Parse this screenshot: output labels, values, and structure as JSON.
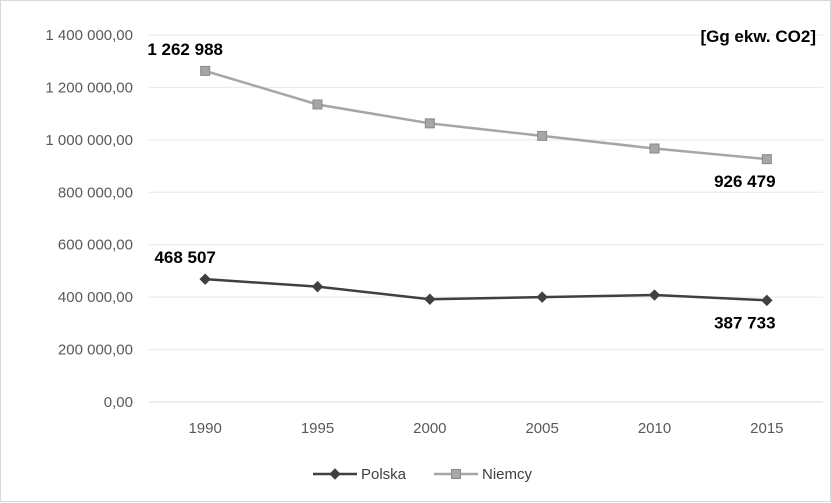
{
  "chart_data": {
    "type": "line",
    "unit_label": "[Gg ekw. CO2]",
    "categories": [
      "1990",
      "1995",
      "2000",
      "2005",
      "2010",
      "2015"
    ],
    "ylim": [
      0,
      1400000
    ],
    "y_ticks": [
      0,
      200000,
      400000,
      600000,
      800000,
      1000000,
      1200000,
      1400000
    ],
    "y_tick_labels": [
      "0,00",
      "200 000,00",
      "400 000,00",
      "600 000,00",
      "800 000,00",
      "1 000 000,00",
      "1 200 000,00",
      "1 400 000,00"
    ],
    "grid": true,
    "legend_position": "bottom",
    "series": [
      {
        "name": "Polska",
        "color": "#404040",
        "marker": "diamond",
        "values": [
          468507,
          440000,
          392000,
          400000,
          408000,
          387733
        ],
        "data_labels": [
          {
            "index": 0,
            "text": "468 507"
          },
          {
            "index": 5,
            "text": "387 733"
          }
        ]
      },
      {
        "name": "Niemcy",
        "color": "#a6a6a6",
        "marker": "square",
        "values": [
          1262988,
          1135000,
          1063000,
          1015000,
          967000,
          926479
        ],
        "data_labels": [
          {
            "index": 0,
            "text": "1 262 988"
          },
          {
            "index": 5,
            "text": "926 479"
          }
        ]
      }
    ]
  }
}
